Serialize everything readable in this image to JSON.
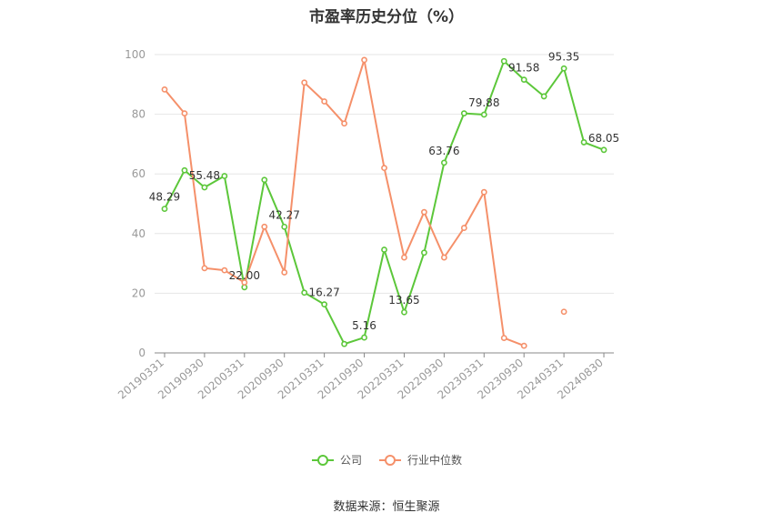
{
  "chart_data": {
    "type": "line",
    "title": "市盈率历史分位（%）",
    "x": [
      "20190331",
      "20190630",
      "20190930",
      "20191231",
      "20200331",
      "20200630",
      "20200930",
      "20201231",
      "20210331",
      "20210630",
      "20210930",
      "20211231",
      "20220331",
      "20220630",
      "20220930",
      "20221231",
      "20230331",
      "20230630",
      "20230930",
      "20231231",
      "20240331",
      "20240630",
      "20240830"
    ],
    "x_tick_labels": [
      "20190331",
      "20190930",
      "20200331",
      "20200930",
      "20210331",
      "20210930",
      "20220331",
      "20220930",
      "20230331",
      "20230930",
      "20240331",
      "20240830"
    ],
    "y_ticks": [
      0,
      20,
      40,
      60,
      80,
      100
    ],
    "ylim": [
      0,
      100
    ],
    "grid": true,
    "legend_position": "bottom",
    "series": [
      {
        "name": "公司",
        "color": "#5cc73a",
        "values": [
          48.29,
          61.2,
          55.48,
          59.3,
          22.0,
          58.0,
          42.27,
          20.2,
          16.27,
          3.0,
          5.16,
          34.6,
          13.65,
          33.6,
          63.76,
          80.3,
          79.88,
          97.8,
          91.58,
          86.0,
          95.35,
          70.6,
          68.05
        ],
        "labels": [
          "48.29",
          null,
          "55.48",
          null,
          "22.00",
          null,
          "42.27",
          null,
          "16.27",
          null,
          "5.16",
          null,
          "13.65",
          null,
          "63.76",
          null,
          "79.88",
          null,
          "91.58",
          null,
          "95.35",
          null,
          "68.05"
        ]
      },
      {
        "name": "行业中位数",
        "color": "#f5906a",
        "values": [
          88.3,
          80.3,
          28.4,
          27.7,
          23.6,
          42.3,
          27.0,
          90.6,
          84.3,
          76.9,
          98.2,
          62.0,
          32.0,
          47.2,
          32.0,
          41.9,
          53.9,
          5.0,
          2.4,
          null,
          13.8,
          null,
          null
        ]
      }
    ]
  },
  "source": "数据来源：恒生聚源"
}
